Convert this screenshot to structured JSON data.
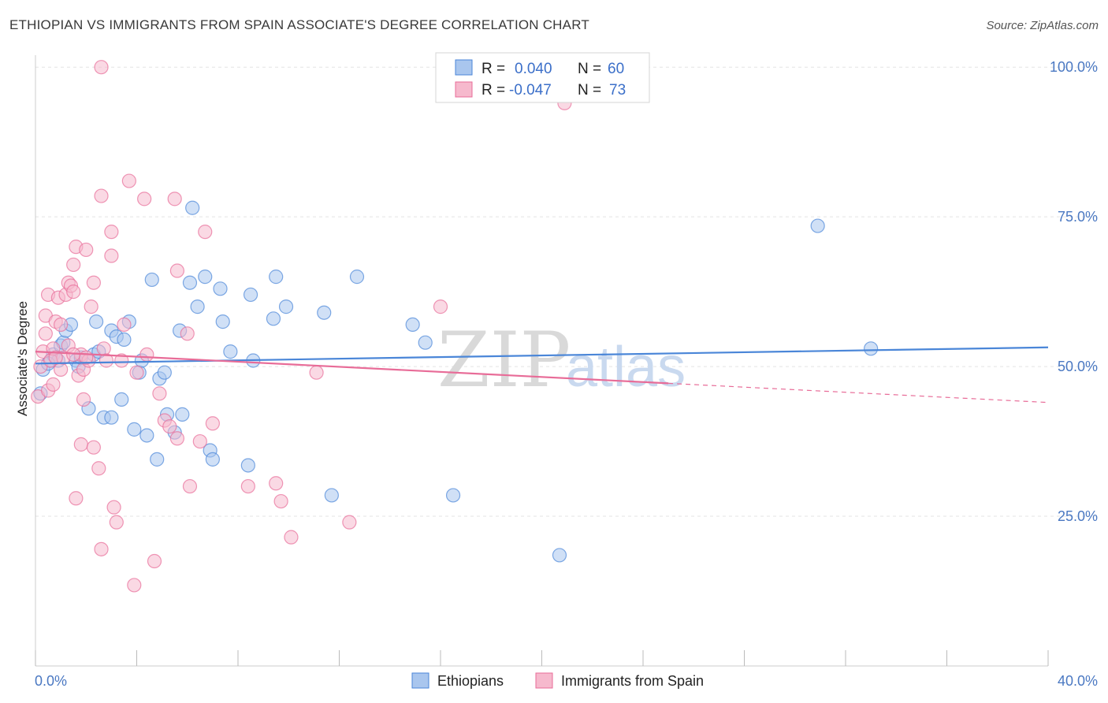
{
  "title": "ETHIOPIAN VS IMMIGRANTS FROM SPAIN ASSOCIATE'S DEGREE CORRELATION CHART",
  "source": "Source: ZipAtlas.com",
  "watermark": {
    "zip": "ZIP",
    "atlas": "atlas"
  },
  "colors": {
    "blue": "#4a86d8",
    "pink": "#e86c98",
    "blue_fill": "#a9c6ee",
    "pink_fill": "#f6b9cd"
  },
  "legend": {
    "r_label": "R =",
    "n_label": "N =",
    "series": [
      {
        "r": "0.040",
        "n": "60"
      },
      {
        "r": "-0.047",
        "n": "73"
      }
    ]
  },
  "bottom_legend": [
    "Ethiopians",
    "Immigrants from Spain"
  ],
  "chart_data": {
    "type": "scatter",
    "ylabel": "Associate's Degree",
    "xlim": [
      0,
      40
    ],
    "ylim": [
      0,
      102
    ],
    "y_ticks": [
      {
        "value": 25,
        "label": "25.0%"
      },
      {
        "value": 50,
        "label": "50.0%"
      },
      {
        "value": 75,
        "label": "75.0%"
      },
      {
        "value": 100,
        "label": "100.0%"
      }
    ],
    "x_tick_labels": [
      {
        "value": 0,
        "label": "0.0%"
      },
      {
        "value": 40,
        "label": "40.0%"
      }
    ],
    "x_minor_ticks": [
      0,
      4,
      8,
      12,
      16,
      20,
      24,
      28,
      32,
      36,
      40
    ],
    "series": [
      {
        "name": "Ethiopians",
        "trend": {
          "x0": 0,
          "y0": 50.5,
          "x1": 40,
          "y1": 53.2
        },
        "points": [
          [
            0.2,
            45.5
          ],
          [
            0.3,
            49.5
          ],
          [
            0.6,
            51.0
          ],
          [
            0.7,
            52.0
          ],
          [
            0.9,
            51.0
          ],
          [
            1.0,
            53.5
          ],
          [
            1.1,
            54.0
          ],
          [
            1.2,
            56.0
          ],
          [
            1.4,
            57.0
          ],
          [
            1.6,
            51.0
          ],
          [
            1.7,
            50.0
          ],
          [
            1.8,
            51.5
          ],
          [
            2.1,
            43.0
          ],
          [
            2.3,
            52.0
          ],
          [
            2.4,
            57.5
          ],
          [
            2.5,
            52.5
          ],
          [
            2.7,
            41.5
          ],
          [
            3.0,
            41.5
          ],
          [
            3.0,
            56.0
          ],
          [
            3.2,
            55.0
          ],
          [
            3.4,
            44.5
          ],
          [
            3.5,
            54.5
          ],
          [
            3.7,
            57.5
          ],
          [
            3.9,
            39.5
          ],
          [
            4.1,
            49.0
          ],
          [
            4.2,
            51.0
          ],
          [
            4.4,
            38.5
          ],
          [
            4.6,
            64.5
          ],
          [
            4.8,
            34.5
          ],
          [
            4.9,
            48.0
          ],
          [
            5.1,
            49.0
          ],
          [
            5.2,
            42.0
          ],
          [
            5.5,
            39.0
          ],
          [
            5.7,
            56.0
          ],
          [
            5.8,
            42.0
          ],
          [
            6.1,
            64.0
          ],
          [
            6.2,
            76.5
          ],
          [
            6.4,
            60.0
          ],
          [
            6.7,
            65.0
          ],
          [
            6.9,
            36.0
          ],
          [
            7.0,
            34.5
          ],
          [
            7.3,
            63.0
          ],
          [
            7.4,
            57.5
          ],
          [
            7.7,
            52.5
          ],
          [
            8.4,
            33.5
          ],
          [
            8.5,
            62.0
          ],
          [
            8.6,
            51.0
          ],
          [
            9.4,
            58.0
          ],
          [
            9.5,
            65.0
          ],
          [
            9.9,
            60.0
          ],
          [
            11.4,
            59.0
          ],
          [
            11.7,
            28.5
          ],
          [
            12.7,
            65.0
          ],
          [
            14.9,
            57.0
          ],
          [
            15.4,
            54.0
          ],
          [
            16.5,
            28.5
          ],
          [
            20.7,
            18.5
          ],
          [
            30.9,
            73.5
          ],
          [
            33.0,
            53.0
          ],
          [
            0.5,
            50.5
          ]
        ]
      },
      {
        "name": "Immigrants from Spain",
        "trend": {
          "x0": 0,
          "y0": 52.5,
          "x1": 25,
          "y1": 47.2
        },
        "trend_dashed": {
          "x0": 25,
          "y0": 47.2,
          "x1": 40,
          "y1": 44.0
        },
        "points": [
          [
            0.1,
            45.0
          ],
          [
            0.2,
            50.0
          ],
          [
            0.3,
            52.5
          ],
          [
            0.4,
            58.5
          ],
          [
            0.4,
            55.5
          ],
          [
            0.5,
            46.0
          ],
          [
            0.5,
            62.0
          ],
          [
            0.6,
            51.0
          ],
          [
            0.7,
            53.0
          ],
          [
            0.7,
            47.0
          ],
          [
            0.8,
            57.5
          ],
          [
            0.9,
            61.5
          ],
          [
            1.0,
            49.5
          ],
          [
            1.0,
            57.0
          ],
          [
            1.1,
            51.5
          ],
          [
            1.2,
            62.0
          ],
          [
            1.3,
            64.0
          ],
          [
            1.3,
            53.5
          ],
          [
            1.4,
            63.5
          ],
          [
            1.5,
            62.5
          ],
          [
            1.5,
            67.0
          ],
          [
            1.6,
            70.0
          ],
          [
            1.6,
            28.0
          ],
          [
            1.7,
            48.5
          ],
          [
            1.8,
            37.0
          ],
          [
            1.8,
            52.0
          ],
          [
            1.9,
            49.5
          ],
          [
            1.9,
            44.5
          ],
          [
            2.0,
            69.5
          ],
          [
            2.1,
            51.0
          ],
          [
            2.2,
            60.0
          ],
          [
            2.3,
            36.5
          ],
          [
            2.3,
            64.0
          ],
          [
            2.5,
            33.0
          ],
          [
            2.6,
            78.5
          ],
          [
            2.7,
            53.0
          ],
          [
            2.8,
            51.0
          ],
          [
            3.0,
            68.5
          ],
          [
            3.0,
            72.5
          ],
          [
            3.1,
            26.5
          ],
          [
            3.2,
            24.0
          ],
          [
            3.4,
            51.0
          ],
          [
            3.5,
            57.0
          ],
          [
            3.7,
            81.0
          ],
          [
            3.9,
            13.5
          ],
          [
            4.0,
            49.0
          ],
          [
            4.3,
            78.0
          ],
          [
            4.4,
            52.0
          ],
          [
            4.7,
            17.5
          ],
          [
            4.9,
            45.5
          ],
          [
            5.1,
            41.0
          ],
          [
            5.3,
            40.0
          ],
          [
            5.5,
            78.0
          ],
          [
            5.6,
            38.0
          ],
          [
            5.6,
            66.0
          ],
          [
            6.0,
            55.5
          ],
          [
            6.1,
            30.0
          ],
          [
            6.5,
            37.5
          ],
          [
            6.7,
            72.5
          ],
          [
            7.0,
            40.5
          ],
          [
            8.4,
            30.0
          ],
          [
            9.5,
            30.5
          ],
          [
            9.7,
            27.5
          ],
          [
            10.1,
            21.5
          ],
          [
            11.1,
            49.0
          ],
          [
            12.4,
            24.0
          ],
          [
            16.0,
            60.0
          ],
          [
            20.9,
            94.0
          ],
          [
            2.6,
            19.5
          ],
          [
            1.5,
            52.0
          ],
          [
            0.8,
            51.5
          ],
          [
            2.0,
            51.5
          ],
          [
            2.6,
            100.0
          ]
        ]
      }
    ]
  }
}
